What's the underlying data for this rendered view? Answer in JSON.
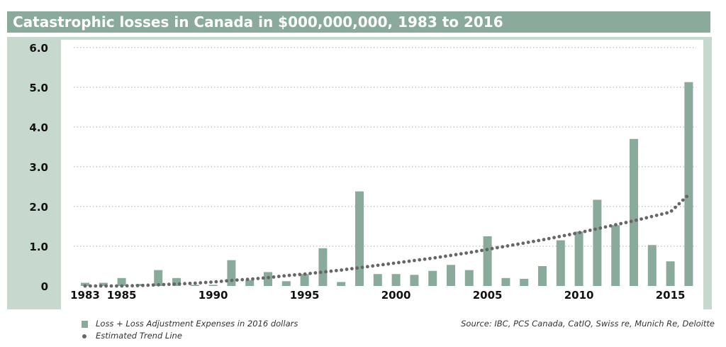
{
  "header": {
    "title": "Catastrophic losses in Canada in $000,000,000, 1983 to 2016"
  },
  "colors": {
    "title_bar": "#8aab9b",
    "panel": "#c7d8cf",
    "plot_bg": "#ffffff",
    "bar": "#8aab9b",
    "trend": "#666666",
    "grid": "#bbbbbb"
  },
  "chart_data": {
    "type": "bar",
    "title": "Catastrophic losses in Canada in $000,000,000, 1983 to 2016",
    "xlabel": "",
    "ylabel": "",
    "ylim": [
      0,
      6
    ],
    "yticks": [
      "0",
      "1.0",
      "2.0",
      "3.0",
      "4.0",
      "5.0",
      "6.0"
    ],
    "xticks": [
      "1983",
      "1985",
      "1990",
      "1995",
      "2000",
      "2005",
      "2010",
      "2015"
    ],
    "grid": true,
    "legend_position": "bottom-left",
    "categories": [
      1983,
      1984,
      1985,
      1986,
      1987,
      1988,
      1989,
      1990,
      1991,
      1992,
      1993,
      1994,
      1995,
      1996,
      1997,
      1998,
      1999,
      2000,
      2001,
      2002,
      2003,
      2004,
      2005,
      2006,
      2007,
      2008,
      2009,
      2010,
      2011,
      2012,
      2013,
      2014,
      2015,
      2016
    ],
    "series": [
      {
        "name": "Loss + Loss Adjustment Expenses in 2016 dollars",
        "type": "bar",
        "values": [
          0.08,
          0.08,
          0.2,
          0.05,
          0.4,
          0.2,
          0.03,
          0.03,
          0.65,
          0.15,
          0.35,
          0.12,
          0.3,
          0.95,
          0.1,
          2.38,
          0.3,
          0.3,
          0.28,
          0.38,
          0.53,
          0.4,
          1.25,
          0.2,
          0.18,
          0.5,
          1.15,
          1.37,
          2.17,
          1.53,
          3.7,
          1.03,
          0.62,
          5.13
        ]
      },
      {
        "name": "Estimated Trend Line",
        "type": "dotted-line",
        "values": [
          0.0,
          0.0,
          0.0,
          0.01,
          0.03,
          0.05,
          0.07,
          0.1,
          0.14,
          0.17,
          0.21,
          0.26,
          0.3,
          0.35,
          0.4,
          0.46,
          0.52,
          0.58,
          0.64,
          0.7,
          0.77,
          0.84,
          0.92,
          1.0,
          1.08,
          1.16,
          1.25,
          1.34,
          1.44,
          1.54,
          1.64,
          1.75,
          1.86,
          2.3
        ]
      }
    ]
  },
  "legend": {
    "items": [
      "Loss + Loss Adjustment Expenses in 2016 dollars",
      "Estimated Trend Line"
    ]
  },
  "footer": {
    "source": "Source: IBC, PCS Canada, CatIQ, Swiss re, Munich Re, Deloitte"
  }
}
